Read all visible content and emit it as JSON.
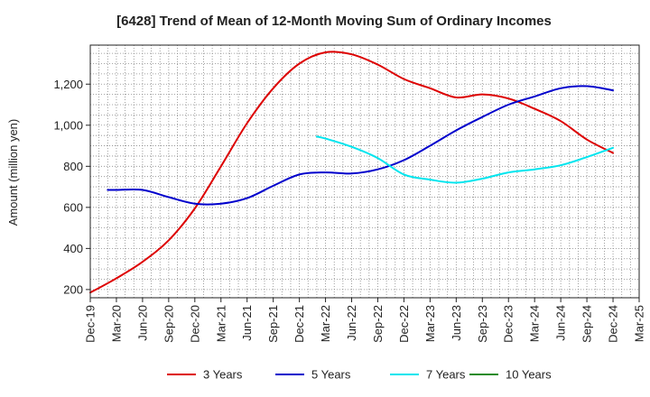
{
  "chart_data": {
    "type": "line",
    "title": "[6428]  Trend of Mean of 12-Month Moving Sum of Ordinary Incomes",
    "xlabel": "",
    "ylabel": "Amount (million yen)",
    "x_ticks": [
      "Dec-19",
      "Mar-20",
      "Jun-20",
      "Sep-20",
      "Dec-20",
      "Mar-21",
      "Jun-21",
      "Sep-21",
      "Dec-21",
      "Mar-22",
      "Jun-22",
      "Sep-22",
      "Dec-22",
      "Mar-23",
      "Jun-23",
      "Sep-23",
      "Dec-23",
      "Mar-24",
      "Jun-24",
      "Sep-24",
      "Dec-24",
      "Mar-25"
    ],
    "y_ticks": [
      200,
      400,
      600,
      800,
      1000,
      1200
    ],
    "ylim": [
      160,
      1390
    ],
    "grid": true,
    "legend_position": "bottom",
    "series": [
      {
        "name": "3 Years",
        "color": "#dd0000",
        "x": [
          "Dec-19",
          "Mar-20",
          "Jun-20",
          "Sep-20",
          "Dec-20",
          "Mar-21",
          "Jun-21",
          "Sep-21",
          "Dec-21",
          "Mar-22",
          "Jun-22",
          "Sep-22",
          "Dec-22",
          "Mar-23",
          "Jun-23",
          "Sep-23",
          "Dec-23",
          "Mar-24",
          "Jun-24",
          "Sep-24",
          "Dec-24"
        ],
        "values": [
          185,
          255,
          335,
          440,
          595,
          800,
          1010,
          1180,
          1300,
          1355,
          1345,
          1295,
          1225,
          1180,
          1135,
          1150,
          1130,
          1080,
          1020,
          930,
          865
        ]
      },
      {
        "name": "5 Years",
        "color": "#0000cc",
        "x": [
          "Feb-20",
          "Mar-20",
          "Jun-20",
          "Sep-20",
          "Dec-20",
          "Mar-21",
          "Jun-21",
          "Sep-21",
          "Dec-21",
          "Mar-22",
          "Jun-22",
          "Sep-22",
          "Dec-22",
          "Mar-23",
          "Jun-23",
          "Sep-23",
          "Dec-23",
          "Mar-24",
          "Jun-24",
          "Sep-24",
          "Dec-24"
        ],
        "values": [
          685,
          685,
          685,
          650,
          618,
          618,
          645,
          705,
          760,
          770,
          765,
          785,
          830,
          900,
          975,
          1040,
          1100,
          1140,
          1180,
          1190,
          1170
        ]
      },
      {
        "name": "7 Years",
        "color": "#00e5ee",
        "x": [
          "Feb-22",
          "Mar-22",
          "Jun-22",
          "Sep-22",
          "Dec-22",
          "Mar-23",
          "Jun-23",
          "Sep-23",
          "Dec-23",
          "Mar-24",
          "Jun-24",
          "Sep-24",
          "Dec-24"
        ],
        "values": [
          945,
          935,
          895,
          840,
          760,
          735,
          720,
          740,
          770,
          785,
          805,
          845,
          890
        ]
      },
      {
        "name": "10 Years",
        "color": "#228b22",
        "x": [],
        "values": []
      }
    ]
  }
}
